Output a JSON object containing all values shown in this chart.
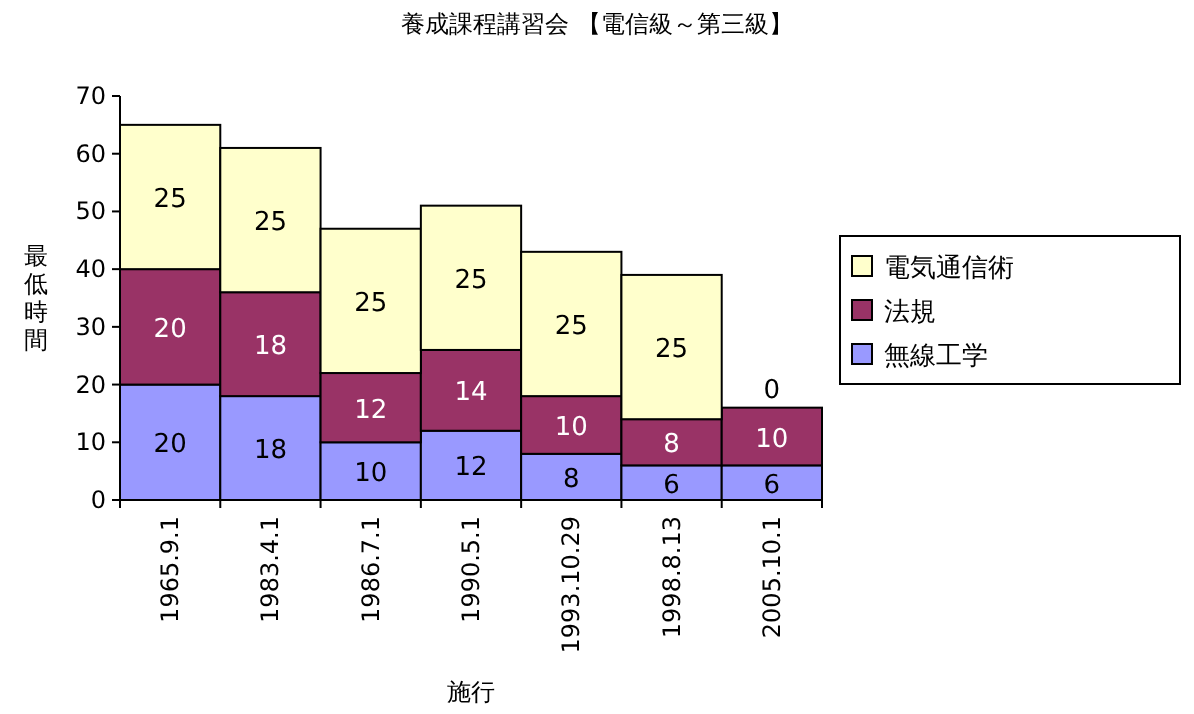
{
  "chart_data": {
    "type": "bar",
    "stacked": true,
    "title": "養成課程講習会 【電信級～第三級】",
    "xlabel": "施行",
    "ylabel": "最低時間",
    "categories": [
      "1965.9.1",
      "1983.4.1",
      "1986.7.1",
      "1990.5.1",
      "1993.10.29",
      "1998.8.13",
      "2005.10.1"
    ],
    "series": [
      {
        "name": "無線工学",
        "color": "#9999ff",
        "values": [
          20,
          18,
          10,
          12,
          8,
          6,
          6
        ]
      },
      {
        "name": "法規",
        "color": "#993366",
        "values": [
          20,
          18,
          12,
          14,
          10,
          8,
          10
        ]
      },
      {
        "name": "電気通信術",
        "color": "#ffffcc",
        "values": [
          25,
          25,
          25,
          25,
          25,
          25,
          0
        ]
      }
    ],
    "ylim": [
      0,
      70
    ],
    "yticks": [
      0,
      10,
      20,
      30,
      40,
      50,
      60,
      70
    ],
    "data_labels": true,
    "legend": "right"
  }
}
